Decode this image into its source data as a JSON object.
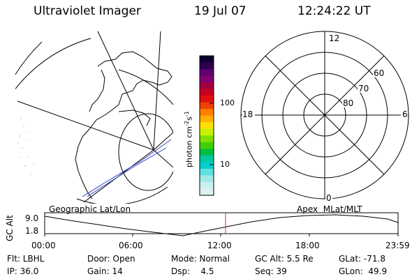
{
  "header": {
    "title": "Ultraviolet Imager",
    "date": "19 Jul 07",
    "time": "12:24:22 UT"
  },
  "colorbar": {
    "unit_label": "photon cm",
    "unit_exp1": "-2",
    "unit_mid": "s",
    "unit_exp2": "-1",
    "ticks": [
      "100",
      "10"
    ],
    "colors": [
      "#0a0030",
      "#300050",
      "#600070",
      "#800070",
      "#a00040",
      "#c80020",
      "#e01010",
      "#f04000",
      "#ff8000",
      "#ffb000",
      "#ffe000",
      "#c8f000",
      "#80e000",
      "#40d000",
      "#00c040",
      "#00c8a0",
      "#00d0d0",
      "#60e0e0",
      "#a0e8e8",
      "#c8f0f0",
      "#e0f0f0"
    ]
  },
  "left_panel": {
    "label": "Geographic Lat/Lon"
  },
  "right_panel": {
    "label": "Apex  MLat/MLT",
    "mlt_labels": [
      "12",
      "18",
      "6",
      "0"
    ],
    "mlat_labels": [
      "60",
      "70",
      "80"
    ]
  },
  "timeline": {
    "y_axis_label": "GC Alt",
    "y_ticks": [
      "9.0",
      "1.8"
    ],
    "x_ticks": [
      "00:00",
      "06:00",
      "12:00",
      "18:00",
      "23:59"
    ],
    "current_marker_color": "#c83030"
  },
  "info": {
    "flt": "Flt: LBHL",
    "ip": "IP: 36.0",
    "door": "Door: Open",
    "gain": "Gain: 14",
    "mode": "Mode: Normal",
    "dsp": "Dsp:    4.5",
    "gc_alt": "GC Alt: 5.5 Re",
    "seq": "Seq: 39",
    "glat": "GLat: -71.8",
    "glon": "GLon:  49.9"
  }
}
